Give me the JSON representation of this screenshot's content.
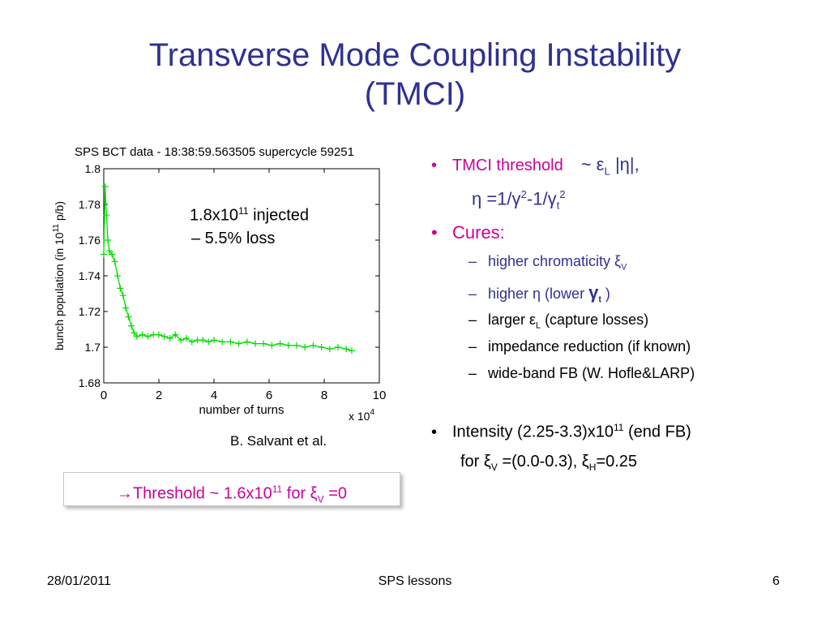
{
  "slide": {
    "title_line1": "Transverse Mode Coupling Instability",
    "title_line2": "(TMCI)",
    "annotation": {
      "line1_base": "1.8x10",
      "line1_sup": "11",
      "line1_rest": " injected",
      "line2": "– 5.5% loss"
    },
    "credit": "B. Salvant et al.",
    "threshold": {
      "prefix": "→Threshold  ~ 1.6x10",
      "sup": "11",
      "mid": " for ξ",
      "sub": "V",
      "suffix": " =0"
    },
    "bullets": {
      "b1_text": "TMCI threshold",
      "b1_formula": "~ ε",
      "b1_sub": "L",
      "b1_tail": " |η|,",
      "b1_line2_a": "η =1/γ",
      "b1_line2_sup1": "2",
      "b1_line2_b": "-1/γ",
      "b1_line2_sub": "t",
      "b1_line2_sup2": "2",
      "b2_text": "Cures:",
      "c1": "higher chromaticity ξ",
      "c1_sub": "V",
      "c2_a": "higher η (lower ",
      "c2_gamma": "γ",
      "c2_sub": "t",
      "c2_b": " )",
      "c3_a": "larger ε",
      "c3_sub": "L",
      "c3_b": "  (capture losses)",
      "c4": "impedance reduction (if known)",
      "c5": "wide-band FB (W. Hofle&LARP)",
      "b3_a": "Intensity (2.25-3.3)x10",
      "b3_sup": "11",
      "b3_b": "  (end FB)",
      "b3_line2_a": "for ξ",
      "b3_line2_sub1": "V",
      "b3_line2_b": "  =(0.0-0.3), ξ",
      "b3_line2_sub2": "H",
      "b3_line2_c": "=0.25"
    },
    "bullet_char": "•",
    "dash_char": "–",
    "footer": {
      "date": "28/01/2011",
      "center": "SPS lessons",
      "page": "6"
    }
  },
  "colors": {
    "title": "#2e3192",
    "accent": "#cc0099",
    "series": "#00dd00"
  },
  "chart_data": {
    "type": "line",
    "title": "SPS BCT data -  18:38:59.563505  supercycle 59251",
    "xlabel": "number of turns",
    "ylabel_base": "bunch population (in 10",
    "ylabel_sup": "11",
    "ylabel_tail": " p/b)",
    "x_multiplier_base": "x 10",
    "x_multiplier_sup": "4",
    "xlim": [
      0,
      10
    ],
    "ylim": [
      1.68,
      1.8
    ],
    "xticks": [
      "0",
      "2",
      "4",
      "6",
      "8",
      "10"
    ],
    "yticks": [
      "1.8",
      "1.78",
      "1.76",
      "1.74",
      "1.72",
      "1.7",
      "1.68"
    ],
    "grid": false,
    "marker": "+",
    "series": [
      {
        "x": [
          0,
          0.05,
          0.1,
          0.15,
          0.2,
          0.3,
          0.4,
          0.5,
          0.6,
          0.7,
          0.8,
          0.9,
          1.0,
          1.1,
          1.2,
          1.4,
          1.6,
          1.8,
          2.0,
          2.2,
          2.4,
          2.6,
          2.8,
          3.0,
          3.2,
          3.4,
          3.6,
          3.8,
          4.0,
          4.3,
          4.6,
          4.9,
          5.2,
          5.5,
          5.8,
          6.1,
          6.4,
          6.7,
          7.0,
          7.3,
          7.6,
          7.9,
          8.2,
          8.5,
          8.8,
          9.0
        ],
        "y": [
          1.752,
          1.79,
          1.774,
          1.76,
          1.754,
          1.752,
          1.748,
          1.74,
          1.733,
          1.729,
          1.722,
          1.717,
          1.712,
          1.708,
          1.706,
          1.707,
          1.706,
          1.707,
          1.707,
          1.706,
          1.705,
          1.707,
          1.704,
          1.705,
          1.703,
          1.704,
          1.704,
          1.703,
          1.704,
          1.703,
          1.703,
          1.702,
          1.703,
          1.702,
          1.702,
          1.701,
          1.702,
          1.701,
          1.701,
          1.7,
          1.701,
          1.7,
          1.699,
          1.7,
          1.699,
          1.698
        ]
      }
    ]
  }
}
